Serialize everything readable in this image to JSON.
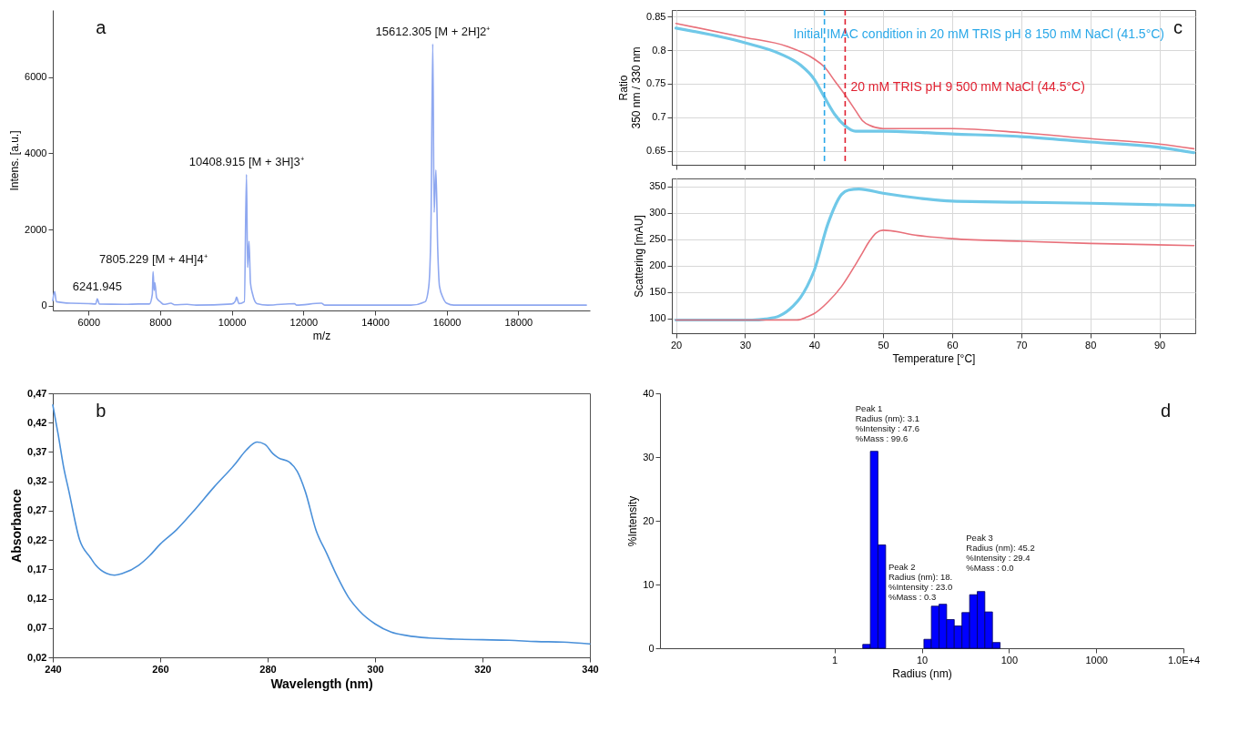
{
  "chart_data": [
    {
      "type": "line",
      "xlabel": "m/z",
      "ylabel": "Intens. [a.u.]",
      "xlim": [
        5000,
        20000
      ],
      "ylim": [
        -130,
        7770
      ],
      "xticks": [
        6000,
        8000,
        10000,
        12000,
        14000,
        16000,
        18000
      ],
      "yticks": [
        0,
        2000,
        4000,
        6000
      ],
      "x": [
        5000,
        5050,
        5100,
        5500,
        6000,
        6200,
        6241.945,
        6300,
        7000,
        7400,
        7700,
        7780,
        7800,
        7830,
        7850,
        7900,
        8000,
        8100,
        8300,
        8400,
        8750,
        9000,
        10000,
        10100,
        10130,
        10200,
        10350,
        10408.915,
        10440,
        10480,
        10520,
        10580,
        10700,
        11000,
        11750,
        11800,
        12500,
        12600,
        15000,
        15400,
        15500,
        15560,
        15612.305,
        15650,
        15700,
        15750,
        15800,
        15900,
        16000,
        16200,
        19900
      ],
      "series": [
        {
          "color": "#8fa8f0",
          "values": [
            130,
            370,
            100,
            60,
            50,
            40,
            180,
            40,
            30,
            40,
            40,
            300,
            890,
            400,
            600,
            200,
            100,
            30,
            60,
            20,
            30,
            10,
            40,
            120,
            220,
            50,
            100,
            3450,
            1000,
            1690,
            600,
            300,
            50,
            10,
            50,
            10,
            60,
            10,
            10,
            100,
            500,
            2000,
            6880,
            2450,
            3560,
            1500,
            500,
            200,
            60,
            10,
            10
          ]
        }
      ],
      "annotations": [
        "a",
        {
          "text": "15612.305 [M + 2H]2⁺",
          "x": 15612.305,
          "y": 6880
        },
        {
          "text": "10408.915 [M + 3H]3⁺",
          "x": 10408.915,
          "y": 3450
        },
        {
          "text": "7805.229 [M + 4H]4⁺",
          "x": 7805.229,
          "y": 890
        },
        {
          "text": "6241.945",
          "x": 6241.945,
          "y": 180
        }
      ]
    },
    {
      "type": "line",
      "ylabel": "Ratio\n350 nm / 330 nm",
      "xlim": [
        19.4,
        95.2
      ],
      "ylim": [
        0.629,
        0.86
      ],
      "xticks": [
        20,
        30,
        40,
        50,
        60,
        70,
        80,
        90
      ],
      "yticks": [
        0.65,
        0.7,
        0.75,
        0.8,
        0.85
      ],
      "grid": true,
      "tick_labels": "y",
      "series": [
        {
          "color": "#70c8e8",
          "x": [
            20,
            30,
            35,
            38,
            40,
            41.5,
            43,
            44.5,
            46,
            50,
            60,
            70,
            80,
            90,
            95
          ],
          "values": [
            0.833,
            0.811,
            0.795,
            0.778,
            0.757,
            0.73,
            0.704,
            0.687,
            0.679,
            0.679,
            0.675,
            0.671,
            0.663,
            0.655,
            0.647
          ]
        },
        {
          "color": "#e8707a",
          "x": [
            20,
            30,
            36,
            40,
            41.5,
            43,
            44.5,
            46,
            47,
            48,
            50,
            60,
            70,
            80,
            90,
            95
          ],
          "values": [
            0.84,
            0.819,
            0.806,
            0.787,
            0.775,
            0.754,
            0.733,
            0.71,
            0.695,
            0.688,
            0.683,
            0.683,
            0.677,
            0.668,
            0.66,
            0.653
          ]
        }
      ],
      "ref_lines": [
        {
          "axis": "x",
          "value": 41.5,
          "label": "Initial IMAC condition in 20 mM TRIS pH 8 150 mM NaCl (41.5°C)",
          "color": "#2aa8e8",
          "line_style": "dashed"
        },
        {
          "axis": "x",
          "value": 44.5,
          "label": "20 mM TRIS pH 9 500 mM NaCl (44.5°C)",
          "color": "#e02030",
          "line_style": "dashed"
        }
      ],
      "annotations": [
        "c"
      ]
    },
    {
      "type": "line",
      "xlabel": "Temperature [°C]",
      "ylabel": "Scattering [mAU]",
      "xlim": [
        19.4,
        95.2
      ],
      "ylim": [
        72,
        365
      ],
      "xticks": [
        20,
        30,
        40,
        50,
        60,
        70,
        80,
        90
      ],
      "yticks": [
        100,
        150,
        200,
        250,
        300,
        350
      ],
      "grid": true,
      "series": [
        {
          "color": "#70c8e8",
          "x": [
            20,
            31,
            33,
            35,
            37,
            38,
            39,
            40,
            42,
            44,
            45,
            46.5,
            50,
            55,
            60,
            70,
            80,
            95
          ],
          "values": [
            97,
            97,
            99,
            105,
            124,
            139,
            161,
            190,
            279,
            335,
            343,
            345,
            337,
            328,
            322,
            320,
            318,
            314
          ]
        },
        {
          "color": "#e8707a",
          "x": [
            20,
            37.5,
            39,
            40,
            42,
            44,
            46,
            47,
            48,
            49,
            50,
            55,
            60,
            70,
            80,
            95
          ],
          "values": [
            97,
            97,
            103,
            109,
            131,
            161,
            202,
            224,
            246,
            262,
            267,
            257,
            251,
            246,
            242,
            238
          ]
        }
      ]
    },
    {
      "type": "line",
      "xlabel": "Wavelength (nm)",
      "ylabel": "Absorbance",
      "xlim": [
        240,
        340
      ],
      "ylim": [
        0.02,
        0.47
      ],
      "xticks": [
        240,
        260,
        280,
        300,
        320,
        340
      ],
      "yticks": [
        {
          "value": 0.02,
          "label": "0,02"
        },
        {
          "value": 0.07,
          "label": "0,07"
        },
        {
          "value": 0.12,
          "label": "0,12"
        },
        {
          "value": 0.17,
          "label": "0,17"
        },
        {
          "value": 0.22,
          "label": "0,22"
        },
        {
          "value": 0.27,
          "label": "0,27"
        },
        {
          "value": 0.32,
          "label": "0,32"
        },
        {
          "value": 0.37,
          "label": "0,37"
        },
        {
          "value": 0.42,
          "label": "0,42"
        },
        {
          "value": 0.47,
          "label": "0,47"
        }
      ],
      "x": [
        240,
        241,
        242,
        243,
        245,
        247,
        248,
        250,
        251.5,
        253,
        256,
        258,
        260,
        263,
        266,
        270,
        274,
        276,
        278,
        279.5,
        281,
        282,
        284,
        285.5,
        287,
        289,
        291,
        293,
        295,
        297,
        300,
        303,
        306,
        310,
        315,
        320,
        325,
        330,
        335,
        340
      ],
      "series": [
        {
          "color": "#4a90d9",
          "values": [
            0.45,
            0.4,
            0.345,
            0.303,
            0.22,
            0.19,
            0.177,
            0.163,
            0.16,
            0.163,
            0.177,
            0.193,
            0.213,
            0.237,
            0.267,
            0.31,
            0.35,
            0.373,
            0.387,
            0.383,
            0.367,
            0.36,
            0.353,
            0.337,
            0.303,
            0.237,
            0.197,
            0.157,
            0.123,
            0.1,
            0.077,
            0.063,
            0.057,
            0.053,
            0.051,
            0.05,
            0.049,
            0.047,
            0.046,
            0.043
          ]
        }
      ],
      "annotations": [
        "b"
      ]
    },
    {
      "type": "histogram",
      "xlabel": "Radius (nm)",
      "ylabel": "%Intensity",
      "log": "x",
      "xlim": [
        0.01,
        10000
      ],
      "ylim": [
        0,
        40
      ],
      "xticks": [
        1,
        10,
        100,
        1000,
        {
          "value": 10000,
          "label": "1.0E+4"
        }
      ],
      "yticks": [
        0,
        10,
        20,
        30,
        40
      ],
      "bins": [
        2.11,
        2.58,
        3.15,
        3.86,
        4.72,
        5.77,
        7.06,
        8.63,
        10.6,
        12.9,
        15.8,
        19.3,
        23.6,
        28.9,
        35.4,
        43.3,
        52.9,
        64.7,
        79.2
      ],
      "values": [
        0.6,
        30.9,
        16.2,
        0,
        0,
        0,
        0,
        0,
        1.4,
        6.6,
        6.9,
        4.5,
        3.5,
        5.6,
        8.4,
        8.9,
        5.7,
        0.9
      ],
      "color": "#0000ff",
      "annotations": [
        "d",
        {
          "text": "Peak 1\nRadius (nm): 3.1\n%Intensity : 47.6\n%Mass : 99.6",
          "x": 3.1,
          "y": 30.9
        },
        {
          "text": "Peak 2\nRadius (nm): 18.\n%Intensity : 23.0\n%Mass : 0.3",
          "x": 18,
          "y": 6.9
        },
        {
          "text": "Peak 3\nRadius (nm): 45.2\n%Intensity : 29.4\n%Mass : 0.0",
          "x": 45.2,
          "y": 8.9
        }
      ]
    }
  ]
}
